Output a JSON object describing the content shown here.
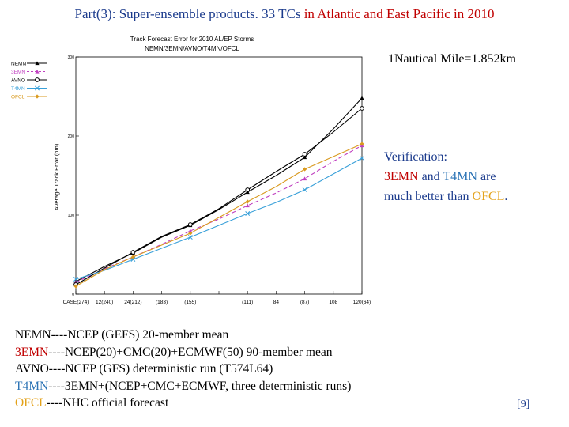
{
  "slide": {
    "title_prefix": "Part(3): Super-ensemble products.  33 TCs ",
    "title_highlight": "in Atlantic and East Pacific in 2010",
    "nautical_note": "1Nautical Mile=1.852km",
    "verification": {
      "line1": "Verification:",
      "line2_a": "3EMN",
      "line2_b": " and ",
      "line2_c": "T4MN",
      "line2_d": " are",
      "line3_a": "much better than ",
      "line3_b": "OFCL",
      "line3_c": "."
    },
    "definitions": [
      {
        "key": "NEMN",
        "text": "----NCEP (GEFS) 20-member mean",
        "color": "#000000"
      },
      {
        "key": "3EMN",
        "text": "----NCEP(20)+CMC(20)+ECMWF(50) 90-member mean",
        "color": "#c00000"
      },
      {
        "key": "AVNO",
        "text": "----NCEP (GFS) deterministic run (T574L64)",
        "color": "#000000"
      },
      {
        "key": "T4MN",
        "text": "----3EMN+(NCEP+CMC+ECMWF, three deterministic runs)",
        "color": "#2e75b6"
      },
      {
        "key": "OFCL",
        "text": "----NHC official forecast",
        "color": "#e3a21a"
      }
    ],
    "page_number": "[9]"
  },
  "chart_data": {
    "type": "line",
    "title": "Track Forecast Error for 2010 AL/EP Storms",
    "subtitle": "NEMN/3EMN/AVNO/T4MN/OFCL",
    "ylabel": "Average Track Error (nm)",
    "xlabel": "",
    "x": [
      0,
      12,
      24,
      36,
      48,
      60,
      72,
      84,
      96,
      108,
      120
    ],
    "x_tick_labels": [
      "CASE(274)",
      "12(240)",
      "24(212)",
      "(183)",
      "(155)",
      "",
      "(111)",
      "84",
      "(87)",
      "108",
      "120(64)"
    ],
    "ylim": [
      0,
      300
    ],
    "y_ticks": [
      0,
      100,
      200,
      300
    ],
    "grid": false,
    "legend": "left",
    "series": [
      {
        "name": "NEMN",
        "color": "#000000",
        "marker": "triangle",
        "values": [
          16,
          35,
          52,
          72,
          87,
          107,
          129,
          150,
          173,
          209,
          248
        ]
      },
      {
        "name": "3EMN",
        "color": "#c03fc0",
        "marker": "triangle",
        "dash": true,
        "values": [
          15,
          32,
          47,
          63,
          80,
          95,
          112,
          128,
          146,
          168,
          188
        ]
      },
      {
        "name": "AVNO",
        "color": "#000000",
        "marker": "circle",
        "values": [
          12,
          33,
          53,
          73,
          88,
          108,
          132,
          155,
          177,
          205,
          235
        ]
      },
      {
        "name": "T4MN",
        "color": "#39a0d9",
        "marker": "x",
        "values": [
          19,
          30,
          44,
          58,
          72,
          87,
          102,
          116,
          132,
          152,
          172
        ]
      },
      {
        "name": "OFCL",
        "color": "#d99a1f",
        "marker": "diamond",
        "values": [
          10,
          31,
          47,
          62,
          77,
          97,
          117,
          136,
          158,
          174,
          190
        ]
      }
    ]
  }
}
